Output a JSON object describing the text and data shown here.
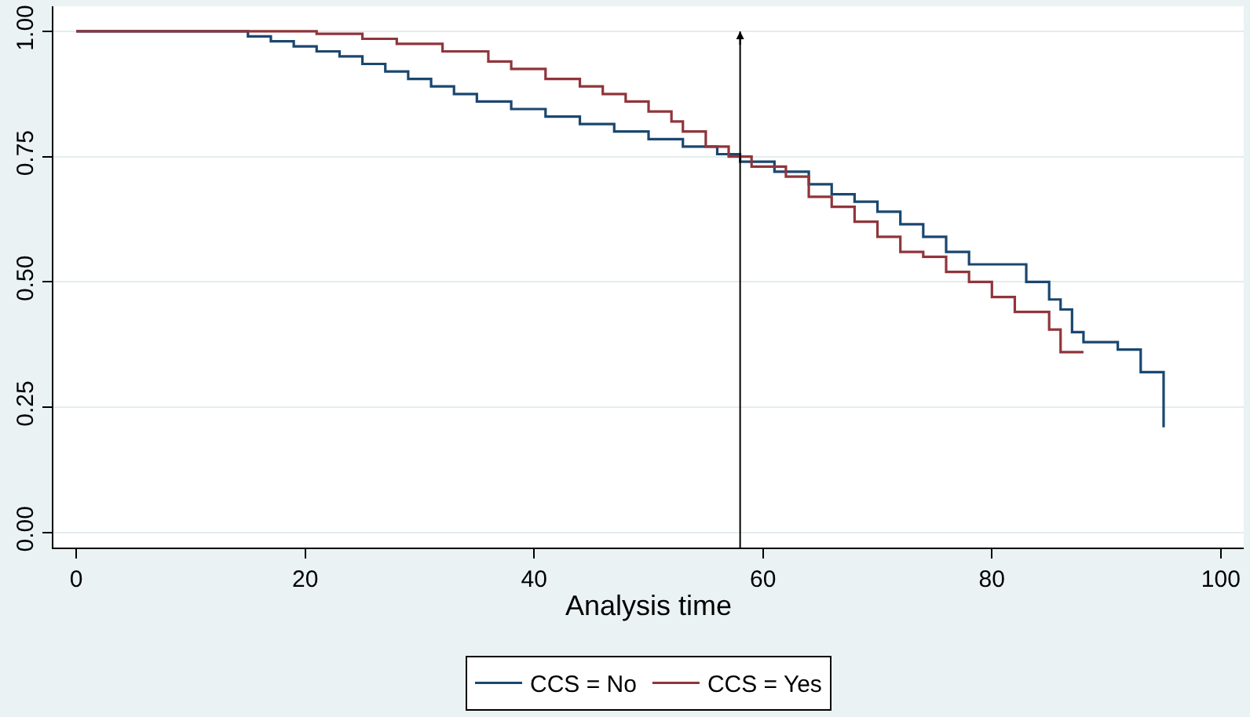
{
  "chart_data": {
    "type": "step",
    "xlabel": "Analysis time",
    "xlim": [
      -2,
      102
    ],
    "xticks": [
      0,
      20,
      40,
      60,
      80,
      100
    ],
    "ylim": [
      -0.03,
      1.05
    ],
    "yticks": [
      {
        "value": 0,
        "label": "0.00"
      },
      {
        "value": 0.25,
        "label": "0.25"
      },
      {
        "value": 0.5,
        "label": "0.50"
      },
      {
        "value": 0.75,
        "label": "0.75"
      },
      {
        "value": 1,
        "label": "1.00"
      }
    ],
    "grid": "y",
    "legend": "bottom",
    "line_style": "solid",
    "marker": "none",
    "series": [
      {
        "name": "CCS = No",
        "color": "#1a476f",
        "x": [
          0,
          15,
          17,
          19,
          21,
          23,
          25,
          27,
          29,
          31,
          33,
          35,
          38,
          41,
          44,
          47,
          50,
          53,
          56,
          58,
          61,
          64,
          66,
          68,
          70,
          72,
          74,
          76,
          78,
          83,
          85,
          86,
          87,
          88,
          91,
          93,
          95
        ],
        "values": [
          1,
          0.99,
          0.98,
          0.97,
          0.96,
          0.95,
          0.935,
          0.92,
          0.905,
          0.89,
          0.875,
          0.86,
          0.845,
          0.83,
          0.815,
          0.8,
          0.785,
          0.77,
          0.755,
          0.74,
          0.72,
          0.695,
          0.675,
          0.66,
          0.64,
          0.615,
          0.59,
          0.56,
          0.535,
          0.5,
          0.465,
          0.445,
          0.4,
          0.38,
          0.365,
          0.32,
          0.21
        ]
      },
      {
        "name": "CCS = Yes",
        "color": "#90353b",
        "x": [
          0,
          21,
          25,
          28,
          32,
          36,
          38,
          41,
          44,
          46,
          48,
          50,
          52,
          53,
          55,
          57,
          59,
          62,
          64,
          66,
          68,
          70,
          72,
          74,
          76,
          78,
          80,
          82,
          85,
          86,
          88
        ],
        "values": [
          1,
          0.995,
          0.985,
          0.975,
          0.96,
          0.94,
          0.925,
          0.905,
          0.89,
          0.875,
          0.86,
          0.84,
          0.82,
          0.8,
          0.77,
          0.75,
          0.73,
          0.71,
          0.67,
          0.65,
          0.62,
          0.59,
          0.56,
          0.55,
          0.52,
          0.5,
          0.47,
          0.44,
          0.405,
          0.36,
          0.36
        ]
      }
    ],
    "ref_lines": [
      {
        "axis": "x",
        "value": 58,
        "color": "#000000"
      }
    ]
  }
}
